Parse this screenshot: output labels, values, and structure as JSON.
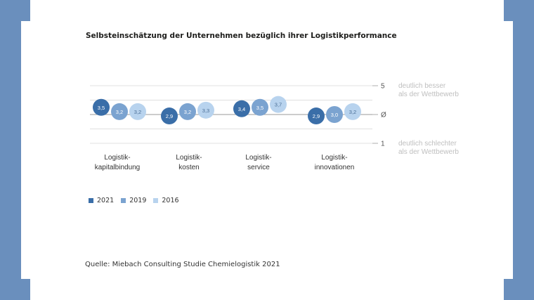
{
  "title": "Selbsteinschätzung der Unternehmen bezüglich ihrer Logistikperformance",
  "source": "Quelle: Miebach Consulting Studie Chemielogistik 2021",
  "colors": {
    "2021": "#3a6ea8",
    "2019": "#7ba3d0",
    "2016": "#b8d3ee",
    "background": "#6a8fbd"
  },
  "chart_data": {
    "type": "scatter",
    "title": "Selbsteinschätzung der Unternehmen bezüglich ihrer Logistikperformance",
    "xlabel": "",
    "ylabel": "",
    "categories": [
      "Logistik-\nkapitalbindung",
      "Logistik-\nkosten",
      "Logistik-\nservice",
      "Logistik-\ninnovationen"
    ],
    "series": [
      {
        "name": "2021",
        "values": [
          3.5,
          2.9,
          3.4,
          2.9
        ]
      },
      {
        "name": "2019",
        "values": [
          3.2,
          3.2,
          3.5,
          3.0
        ]
      },
      {
        "name": "2016",
        "values": [
          3.2,
          3.3,
          3.7,
          3.2
        ]
      }
    ],
    "y_ticks": [
      {
        "value": 5,
        "label": "5",
        "annotation": "deutlich besser\nals der Wettbewerb"
      },
      {
        "value": 3,
        "label": "Ø"
      },
      {
        "value": 1,
        "label": "1",
        "annotation": "deutlich schlechter\nals der Wettbewerb"
      }
    ],
    "legend": "bottom-left"
  }
}
